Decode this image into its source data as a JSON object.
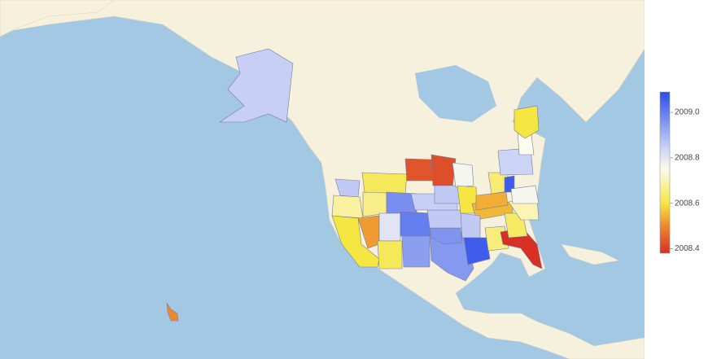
{
  "chart_data": {
    "type": "choropleth",
    "values": [
      2008.85,
      2008.5,
      2008.86,
      2008.68,
      2008.6,
      2008.52,
      2008.62,
      2008.66,
      2008.97,
      2008.8,
      2008.62,
      2009.0,
      2008.94,
      2008.95,
      2008.96,
      2008.86,
      2008.85,
      2008.43,
      2008.42,
      2008.86,
      2008.76,
      2008.6,
      2008.55,
      2008.86,
      2009.06,
      2008.65,
      2008.38,
      2008.63,
      2008.7,
      2008.54,
      2008.64,
      2009.06,
      2008.76,
      2008.84,
      2008.75,
      2008.6
    ],
    "colorbar": {
      "lim": [
        2008.38,
        2009.09
      ],
      "ticks": [
        2008.4,
        2008.6,
        2008.8,
        {
          "value": 2009,
          "label": "2009.0"
        }
      ]
    }
  }
}
